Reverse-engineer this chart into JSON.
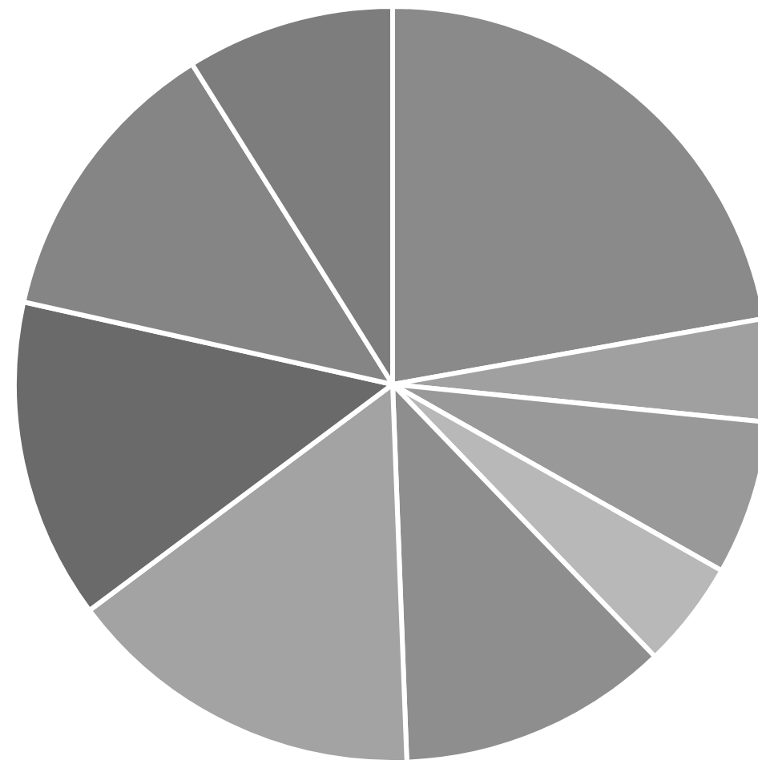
{
  "chart_data": {
    "type": "pie",
    "categories": [
      null,
      null,
      null,
      null,
      null,
      null,
      null,
      null,
      null
    ],
    "values": [
      22.2,
      4.4,
      6.6,
      4.6,
      11.6,
      15.4,
      13.7,
      12.6,
      8.9
    ],
    "colors": [
      "#8a8a8a",
      "#a0a0a0",
      "#999999",
      "#b8b8b8",
      "#8e8e8e",
      "#a3a3a3",
      "#6a6a6a",
      "#858585",
      "#7d7d7d"
    ]
  }
}
